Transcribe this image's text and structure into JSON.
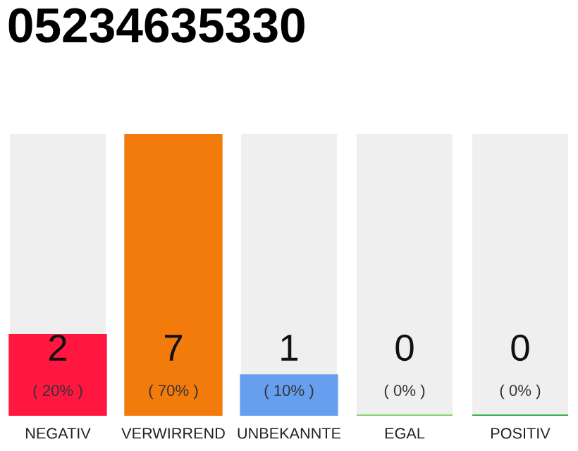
{
  "chart_data": {
    "type": "bar",
    "title": "05234635330",
    "categories": [
      "NEGATIV",
      "VERWIRREND",
      "UNBEKANNTE",
      "EGAL",
      "POSITIV"
    ],
    "values": [
      2,
      7,
      1,
      0,
      0
    ],
    "colors": [
      "#ff1740",
      "#f27b0c",
      "#679ff0",
      "#7dcc68",
      "#22a846"
    ],
    "data_labels": true,
    "annotations": [
      "( 20% )",
      "( 70% )",
      "( 10% )",
      "( 0% )",
      "( 0% )"
    ]
  }
}
